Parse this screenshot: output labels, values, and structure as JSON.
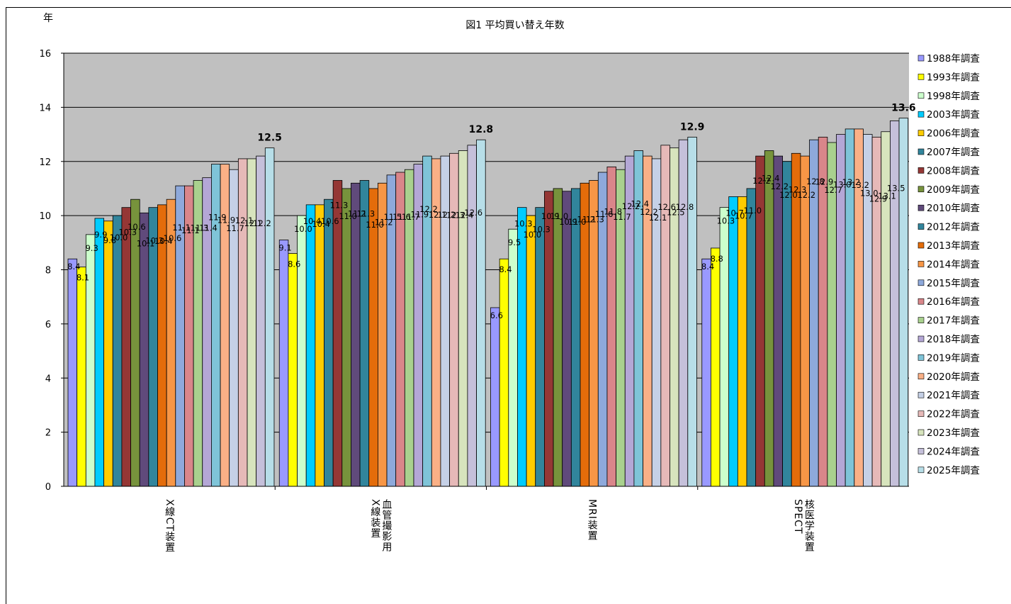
{
  "chart_data": {
    "type": "bar",
    "title": "図1 平均買い替え年数",
    "ylabel": "年",
    "ylim": [
      0,
      16
    ],
    "yticks": [
      "0",
      "2",
      "4",
      "6",
      "8",
      "10",
      "12",
      "14",
      "16"
    ],
    "grid": true,
    "legend_position": "right",
    "categories": [
      [
        "X線CT装置"
      ],
      [
        "血管撮影用",
        "X線装置"
      ],
      [
        "MRI装置"
      ],
      [
        "核医学装置",
        "SPECT"
      ]
    ],
    "series": [
      {
        "name": "1988年調査",
        "color": "#9999ff",
        "values": [
          8.4,
          9.1,
          6.6,
          8.4
        ]
      },
      {
        "name": "1993年調査",
        "color": "#ffff00",
        "values": [
          8.1,
          8.6,
          8.4,
          8.8
        ]
      },
      {
        "name": "1998年調査",
        "color": "#ccffcc",
        "values": [
          9.3,
          10.0,
          9.5,
          10.3
        ]
      },
      {
        "name": "2003年調査",
        "color": "#00ccff",
        "values": [
          9.9,
          10.4,
          10.3,
          10.7
        ]
      },
      {
        "name": "2006年調査",
        "color": "#ffcc00",
        "values": [
          9.8,
          10.4,
          10.0,
          10.7
        ]
      },
      {
        "name": "2007年調査",
        "color": "#31859c",
        "values": [
          10.0,
          10.6,
          10.3,
          11.0
        ]
      },
      {
        "name": "2008年調査",
        "color": "#953735",
        "values": [
          10.3,
          11.3,
          10.9,
          12.2
        ]
      },
      {
        "name": "2009年調査",
        "color": "#77933c",
        "values": [
          10.6,
          11.0,
          11.0,
          12.4
        ]
      },
      {
        "name": "2010年調査",
        "color": "#604a7b",
        "values": [
          10.1,
          11.2,
          10.9,
          12.2
        ]
      },
      {
        "name": "2012年調査",
        "color": "#31859c",
        "values": [
          10.3,
          11.3,
          11.0,
          12.0
        ]
      },
      {
        "name": "2013年調査",
        "color": "#e46c0a",
        "values": [
          10.4,
          11.0,
          11.2,
          12.3
        ]
      },
      {
        "name": "2014年調査",
        "color": "#f79646",
        "values": [
          10.6,
          11.2,
          11.3,
          12.2
        ]
      },
      {
        "name": "2015年調査",
        "color": "#8ea9db",
        "values": [
          11.1,
          11.5,
          11.6,
          12.8
        ]
      },
      {
        "name": "2016年調査",
        "color": "#d9868a",
        "values": [
          11.1,
          11.6,
          11.8,
          12.9
        ]
      },
      {
        "name": "2017年調査",
        "color": "#a9d18e",
        "values": [
          11.3,
          11.7,
          11.7,
          12.7
        ]
      },
      {
        "name": "2018年調査",
        "color": "#b4a7d6",
        "values": [
          11.4,
          11.9,
          12.2,
          13.0
        ]
      },
      {
        "name": "2019年調査",
        "color": "#7fc4d8",
        "values": [
          11.9,
          12.2,
          12.4,
          13.2
        ]
      },
      {
        "name": "2020年調査",
        "color": "#fab086",
        "values": [
          11.9,
          12.1,
          12.2,
          13.2
        ]
      },
      {
        "name": "2021年調査",
        "color": "#c5d0e6",
        "values": [
          11.7,
          12.2,
          12.1,
          13.0
        ]
      },
      {
        "name": "2022年調査",
        "color": "#e6b9b8",
        "values": [
          12.1,
          12.3,
          12.6,
          12.9
        ]
      },
      {
        "name": "2023年調査",
        "color": "#d7e4bd",
        "values": [
          12.1,
          12.4,
          12.5,
          13.1
        ]
      },
      {
        "name": "2024年調査",
        "color": "#c5c0da",
        "values": [
          12.2,
          12.6,
          12.8,
          13.5
        ]
      },
      {
        "name": "2025年調査",
        "color": "#b7dee8",
        "values": [
          12.5,
          12.8,
          12.9,
          13.6
        ]
      }
    ],
    "highlight_labels": [
      "12.5",
      "12.8",
      "12.9",
      "13.6"
    ],
    "plot_background": "#c0c0c0"
  }
}
